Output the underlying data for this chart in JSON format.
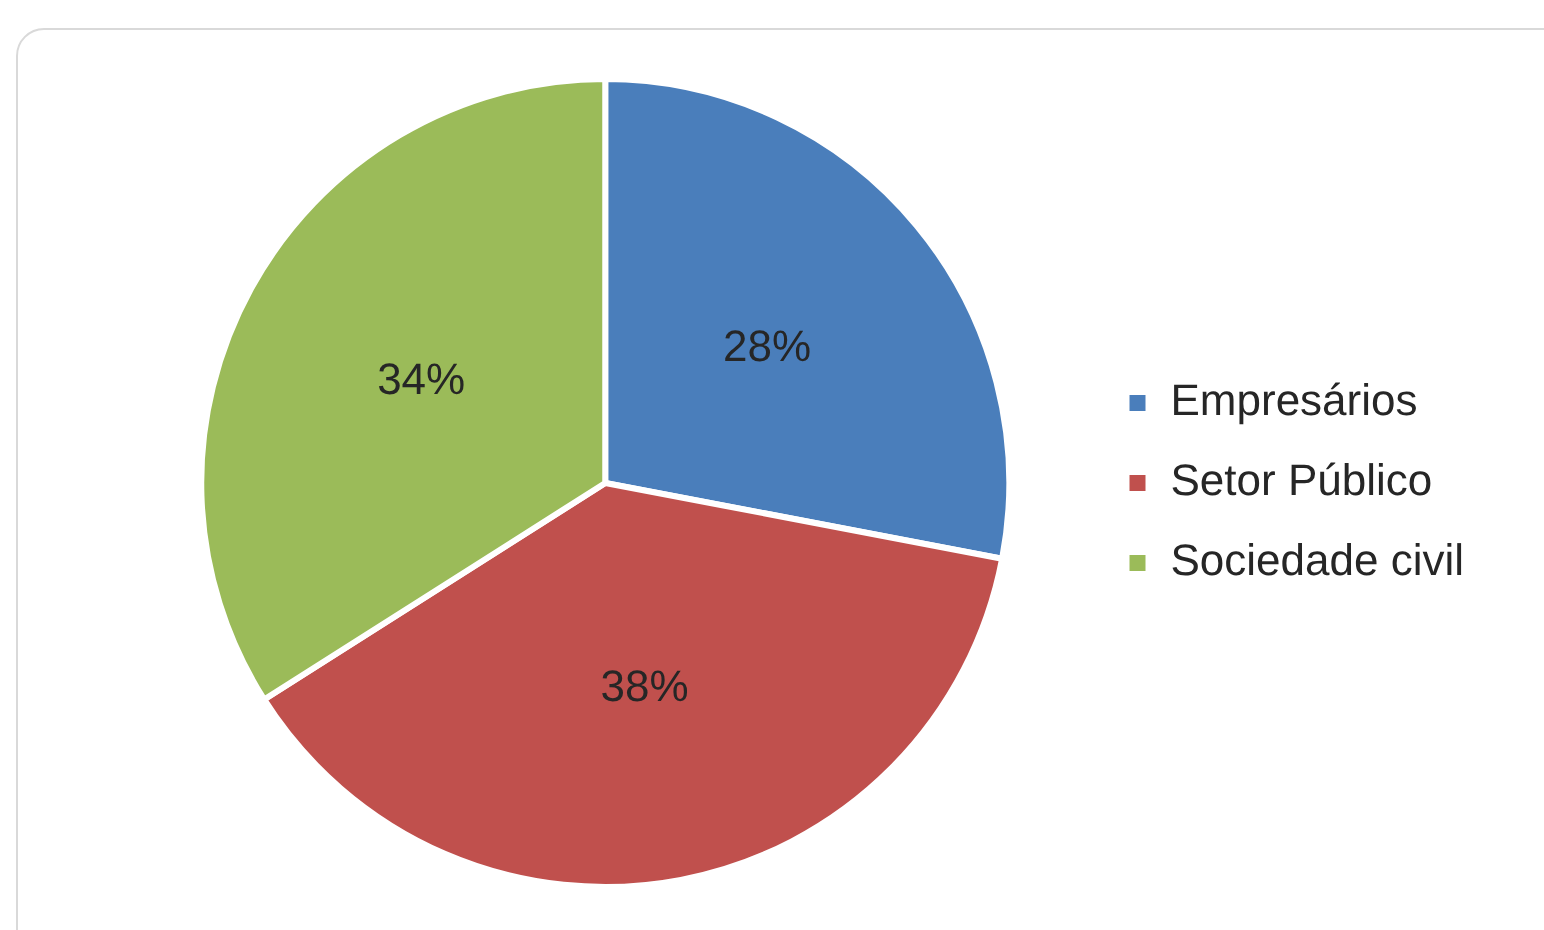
{
  "chart_data": {
    "type": "pie",
    "categories": [
      "Empresários",
      "Setor Público",
      "Sociedade civil"
    ],
    "values": [
      28,
      38,
      34
    ],
    "colors": [
      "#4a7ebb",
      "#c0504d",
      "#9bbb59"
    ],
    "value_labels": [
      "28%",
      "38%",
      "34%"
    ],
    "legend": "right"
  }
}
